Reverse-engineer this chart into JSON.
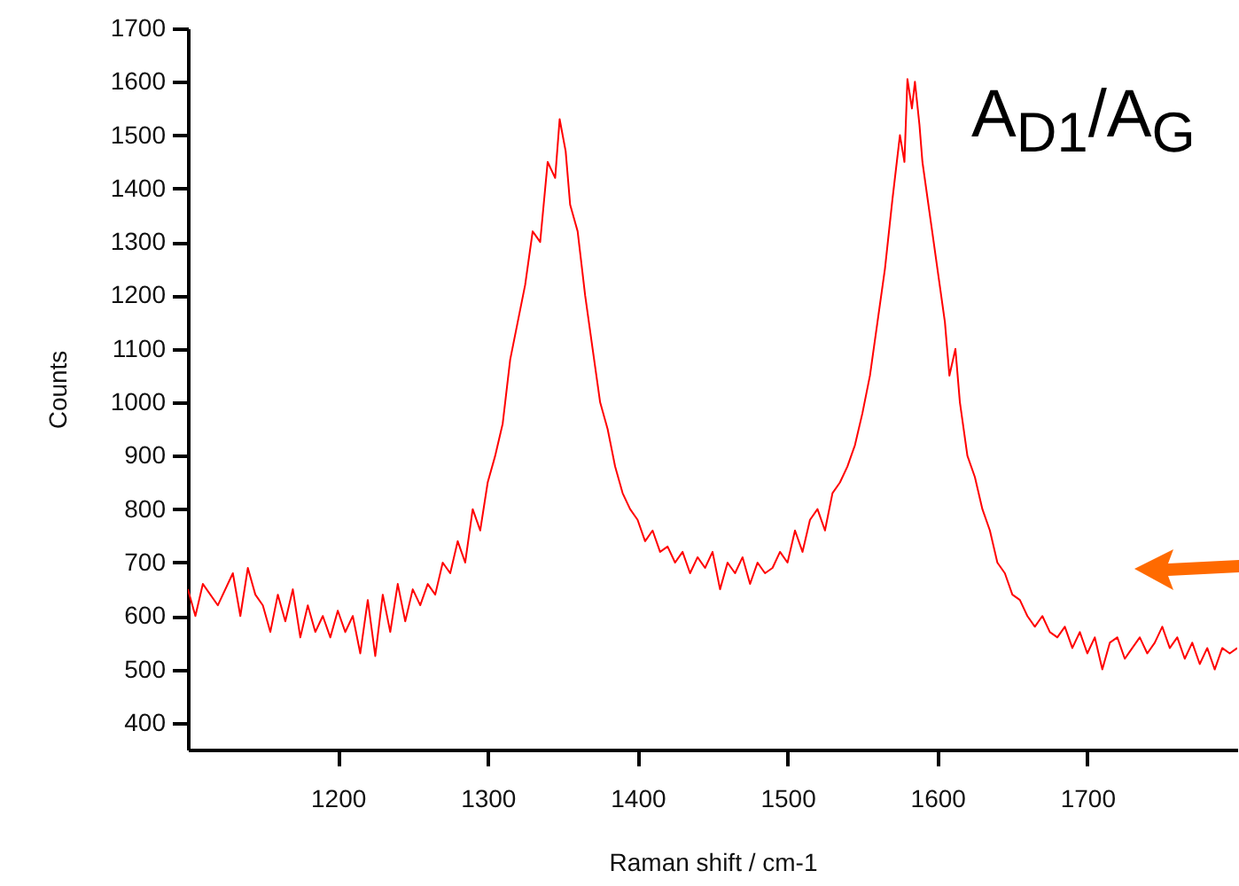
{
  "chart_data": {
    "type": "line",
    "xlabel": "Raman shift / cm-1",
    "ylabel": "Counts",
    "annotations": [
      "A$_{D1}$/A$_{G}$"
    ],
    "xlim": [
      1100,
      1800
    ],
    "xticks": [
      1200,
      1300,
      1400,
      1500,
      1600,
      1700
    ],
    "ylim": [
      350,
      1700
    ],
    "yticks": [
      400,
      500,
      600,
      700,
      800,
      900,
      1000,
      1100,
      1200,
      1300,
      1400,
      1500,
      1600,
      1700
    ],
    "x": [
      1100,
      1105,
      1110,
      1120,
      1130,
      1135,
      1140,
      1145,
      1150,
      1155,
      1160,
      1165,
      1170,
      1175,
      1180,
      1185,
      1190,
      1195,
      1200,
      1205,
      1210,
      1215,
      1220,
      1225,
      1230,
      1235,
      1240,
      1245,
      1250,
      1255,
      1260,
      1265,
      1270,
      1275,
      1280,
      1285,
      1290,
      1295,
      1300,
      1305,
      1310,
      1315,
      1320,
      1325,
      1330,
      1335,
      1340,
      1345,
      1348,
      1352,
      1355,
      1360,
      1365,
      1370,
      1375,
      1380,
      1385,
      1390,
      1395,
      1400,
      1405,
      1410,
      1415,
      1420,
      1425,
      1430,
      1435,
      1440,
      1445,
      1450,
      1455,
      1460,
      1465,
      1470,
      1475,
      1480,
      1485,
      1490,
      1495,
      1500,
      1505,
      1510,
      1515,
      1520,
      1525,
      1530,
      1535,
      1540,
      1545,
      1550,
      1555,
      1560,
      1565,
      1570,
      1575,
      1578,
      1580,
      1583,
      1585,
      1588,
      1590,
      1595,
      1600,
      1605,
      1608,
      1612,
      1615,
      1620,
      1625,
      1630,
      1635,
      1640,
      1645,
      1650,
      1655,
      1660,
      1665,
      1670,
      1675,
      1680,
      1685,
      1690,
      1695,
      1700,
      1705,
      1710,
      1715,
      1720,
      1725,
      1730,
      1735,
      1740,
      1745,
      1750,
      1755,
      1760,
      1765,
      1770,
      1775,
      1780,
      1785,
      1790,
      1795,
      1800
    ],
    "series": [
      {
        "color": "#ff0000",
        "values": [
          650,
          600,
          660,
          620,
          680,
          600,
          690,
          640,
          620,
          570,
          640,
          590,
          650,
          560,
          620,
          570,
          600,
          560,
          610,
          570,
          600,
          530,
          630,
          525,
          640,
          570,
          660,
          590,
          650,
          620,
          660,
          640,
          700,
          680,
          740,
          700,
          800,
          760,
          850,
          900,
          960,
          1080,
          1150,
          1220,
          1320,
          1300,
          1450,
          1420,
          1530,
          1470,
          1370,
          1320,
          1200,
          1100,
          1000,
          950,
          880,
          830,
          800,
          780,
          740,
          760,
          720,
          730,
          700,
          720,
          680,
          710,
          690,
          720,
          650,
          700,
          680,
          710,
          660,
          700,
          680,
          690,
          720,
          700,
          760,
          720,
          780,
          800,
          760,
          830,
          850,
          880,
          920,
          980,
          1050,
          1150,
          1250,
          1380,
          1500,
          1450,
          1605,
          1550,
          1600,
          1520,
          1450,
          1350,
          1250,
          1150,
          1050,
          1100,
          1000,
          900,
          860,
          800,
          760,
          700,
          680,
          640,
          630,
          600,
          580,
          600,
          570,
          560,
          580,
          540,
          570,
          530,
          560,
          500,
          550,
          560,
          520,
          540,
          560,
          530,
          550,
          580,
          540,
          560,
          520,
          550,
          510,
          540,
          500,
          540,
          530,
          540
        ]
      }
    ]
  }
}
